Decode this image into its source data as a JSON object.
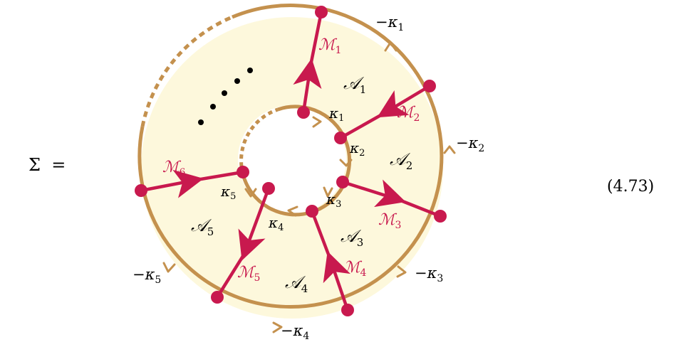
{
  "equation": {
    "lhs": "Σ  =",
    "number": "(4.73)"
  },
  "colors": {
    "annulus_fill": "#fdf8dc",
    "boundary": "#c4914e",
    "arrow": "#c8194e"
  },
  "regions": [
    {
      "label": "𝒜",
      "sub": "1"
    },
    {
      "label": "𝒜",
      "sub": "2"
    },
    {
      "label": "𝒜",
      "sub": "3"
    },
    {
      "label": "𝒜",
      "sub": "4"
    },
    {
      "label": "𝒜",
      "sub": "5"
    }
  ],
  "arrows": [
    {
      "label": "ℳ",
      "sub": "1"
    },
    {
      "label": "ℳ",
      "sub": "2"
    },
    {
      "label": "ℳ",
      "sub": "3"
    },
    {
      "label": "ℳ",
      "sub": "4"
    },
    {
      "label": "ℳ",
      "sub": "5"
    },
    {
      "label": "ℳ",
      "sub": "6"
    }
  ],
  "inner_labels": [
    {
      "label": "κ",
      "sub": "1"
    },
    {
      "label": "κ",
      "sub": "2"
    },
    {
      "label": "κ",
      "sub": "3"
    },
    {
      "label": "κ",
      "sub": "4"
    },
    {
      "label": "κ",
      "sub": "5"
    }
  ],
  "outer_labels": [
    {
      "label": "−κ",
      "sub": "1"
    },
    {
      "label": "−κ",
      "sub": "2"
    },
    {
      "label": "−κ",
      "sub": "3"
    },
    {
      "label": "−κ",
      "sub": "4"
    },
    {
      "label": "−κ",
      "sub": "5"
    }
  ]
}
